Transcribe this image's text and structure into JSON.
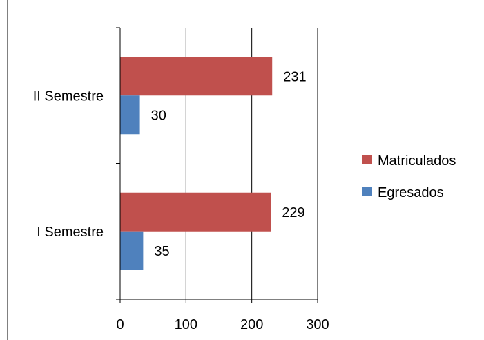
{
  "chart_data": {
    "type": "bar",
    "orientation": "horizontal",
    "categories": [
      "I Semestre",
      "II Semestre"
    ],
    "series": [
      {
        "name": "Matriculados",
        "values": [
          229,
          231
        ],
        "color": "#c0504d"
      },
      {
        "name": "Egresados",
        "values": [
          35,
          30
        ],
        "color": "#4f81bd"
      }
    ],
    "xlim": [
      0,
      300
    ],
    "xticks": [
      0,
      100,
      200,
      300
    ],
    "grid": true,
    "legend_position": "right"
  }
}
